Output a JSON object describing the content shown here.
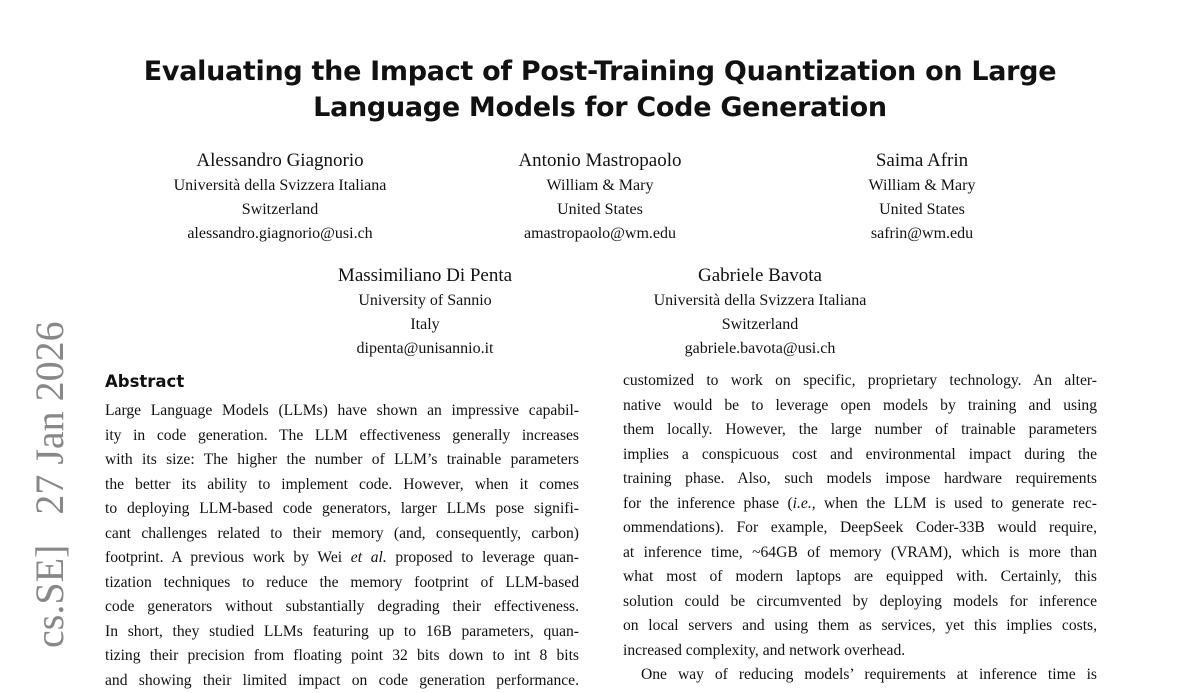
{
  "title": [
    "Evaluating the Impact of Post-Training Quantization on Large",
    "Language Models for Code Generation"
  ],
  "authors": [
    {
      "name": "Alessandro Giagnorio",
      "affiliation": "Università della Svizzera Italiana",
      "country": "Switzerland",
      "email": "alessandro.giagnorio@usi.ch"
    },
    {
      "name": "Antonio Mastropaolo",
      "affiliation": "William & Mary",
      "country": "United States",
      "email": "amastropaolo@wm.edu"
    },
    {
      "name": "Saima Afrin",
      "affiliation": "William & Mary",
      "country": "United States",
      "email": "safrin@wm.edu"
    },
    {
      "name": "Massimiliano Di Penta",
      "affiliation": "University of Sannio",
      "country": "Italy",
      "email": "dipenta@unisannio.it"
    },
    {
      "name": "Gabriele Bavota",
      "affiliation": "Università della Svizzera Italiana",
      "country": "Switzerland",
      "email": "gabriele.bavota@usi.ch"
    }
  ],
  "arxiv_label": "cs.SE]   27 Jan 2026",
  "abstract_heading": "Abstract",
  "left_lines": [
    "Large Language Models (LLMs) have shown an impressive capabil-",
    "ity in code generation. The LLM effectiveness generally increases",
    "with its size: The higher the number of LLM’s trainable parameters",
    "the better its ability to implement code. However, when it comes",
    "to deploying LLM-based code generators, larger LLMs pose signifi-",
    "cant challenges related to their memory (and, consequently, carbon)",
    "footprint. A previous work by Wei et al. proposed to leverage quan-",
    "tization techniques to reduce the memory footprint of LLM-based",
    "code generators without substantially degrading their effectiveness.",
    "In short, they studied LLMs featuring up to 16B parameters, quan-",
    "tizing their precision from floating point 32 bits down to int 8 bits",
    "and showing their limited impact on code generation performance."
  ],
  "right_lines": [
    "customized to work on specific, proprietary technology. An alter-",
    "native would be to leverage open models by training and using",
    "them locally. However, the large number of trainable parameters",
    "implies a conspicuous cost and environmental impact during the",
    "training phase. Also, such models impose hardware requirements",
    "for the inference phase (i.e., when the LLM is used to generate rec-",
    "ommendations). For example, DeepSeek Coder-33B would require,",
    "at inference time, ~64GB of memory (VRAM), which is more than",
    "what most of modern laptops are equipped with. Certainly, this",
    "solution could be circumvented by deploying models for inference",
    "on local servers and using them as services, yet this implies costs,",
    "increased complexity, and network overhead.",
    "One way of reducing models’ requirements at inference time is"
  ]
}
